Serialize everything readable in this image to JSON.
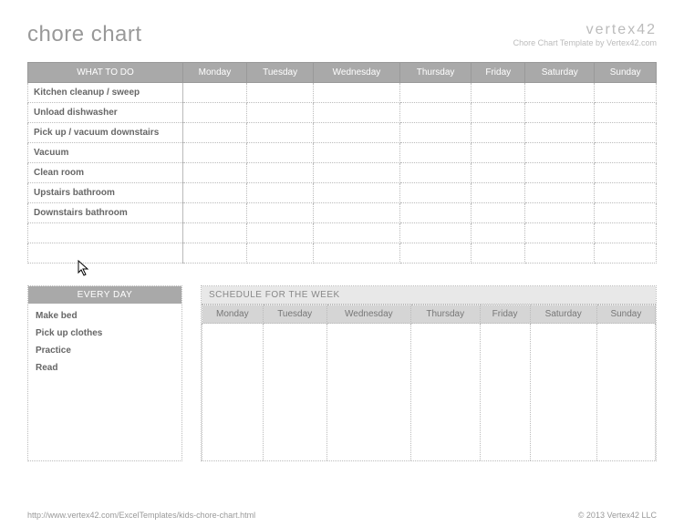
{
  "title": "chore chart",
  "brand": {
    "logo": "vertex42",
    "tagline": "Chore Chart Template by Vertex42.com"
  },
  "main_table": {
    "header_first": "WHAT TO DO",
    "days": [
      "Monday",
      "Tuesday",
      "Wednesday",
      "Thursday",
      "Friday",
      "Saturday",
      "Sunday"
    ],
    "tasks": [
      "Kitchen cleanup / sweep",
      "Unload dishwasher",
      "Pick up / vacuum downstairs",
      "Vacuum",
      "Clean room",
      "Upstairs bathroom",
      "Downstairs bathroom",
      "",
      ""
    ]
  },
  "everyday": {
    "header": "EVERY DAY",
    "items": [
      "Make bed",
      "Pick up clothes",
      "Practice",
      "Read"
    ]
  },
  "schedule": {
    "header": "SCHEDULE FOR THE WEEK",
    "days": [
      "Monday",
      "Tuesday",
      "Wednesday",
      "Thursday",
      "Friday",
      "Saturday",
      "Sunday"
    ]
  },
  "footer": {
    "url": "http://www.vertex42.com/ExcelTemplates/kids-chore-chart.html",
    "copyright": "© 2013 Vertex42 LLC"
  },
  "colors": {
    "header_bg": "#a9a9a9",
    "header_fg": "#ffffff",
    "sub_header_bg": "#e8e8e8",
    "day_header_bg": "#d5d5d5",
    "border": "#bbbbbb",
    "text": "#666666",
    "muted": "#999999",
    "background": "#ffffff"
  },
  "typography": {
    "title_fontsize": 24,
    "cell_fontsize": 10,
    "footer_fontsize": 9
  }
}
